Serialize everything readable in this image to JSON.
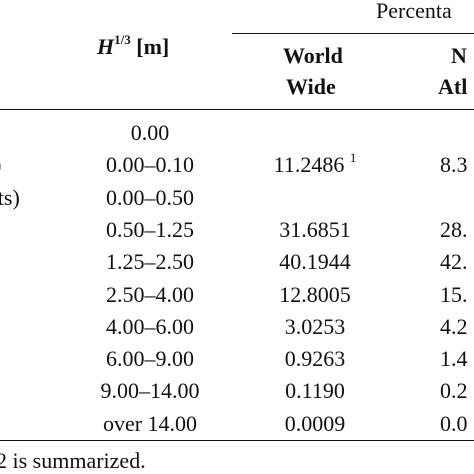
{
  "table": {
    "percent_header": "Percenta",
    "height_header": {
      "main": "H",
      "sup": "1/3",
      "unit": " [m]"
    },
    "col_world_line1": "World",
    "col_world_line2": "Wide",
    "col_na_line1": "N",
    "col_na_line2": "Atl",
    "rows": [
      {
        "label": ")",
        "height": "0.00",
        "world": "",
        "world_sup": "",
        "na": ""
      },
      {
        "label": "l)",
        "height": "0.00–0.10",
        "world": "11.2486",
        "world_sup": "1",
        "na": "8.3"
      },
      {
        "label": "ets)",
        "height": "0.00–0.50",
        "world": "",
        "world_sup": "",
        "na": ""
      },
      {
        "label": "",
        "height": "0.50–1.25",
        "world": "31.6851",
        "world_sup": "",
        "na": "28."
      },
      {
        "label": "",
        "height": "1.25–2.50",
        "world": "40.1944",
        "world_sup": "",
        "na": "42."
      },
      {
        "label": "",
        "height": "2.50–4.00",
        "world": "12.8005",
        "world_sup": "",
        "na": "15."
      },
      {
        "label": "",
        "height": "4.00–6.00",
        "world": "3.0253",
        "world_sup": "",
        "na": "4.2"
      },
      {
        "label": "",
        "height": "6.00–9.00",
        "world": "0.9263",
        "world_sup": "",
        "na": "1.4"
      },
      {
        "label": "",
        "height": "9.00–14.00",
        "world": "0.1190",
        "world_sup": "",
        "na": "0.2"
      },
      {
        "label": "",
        "height": "over 14.00",
        "world": "0.0009",
        "world_sup": "",
        "na": "0.0"
      }
    ],
    "footnote": "2 is summarized."
  }
}
